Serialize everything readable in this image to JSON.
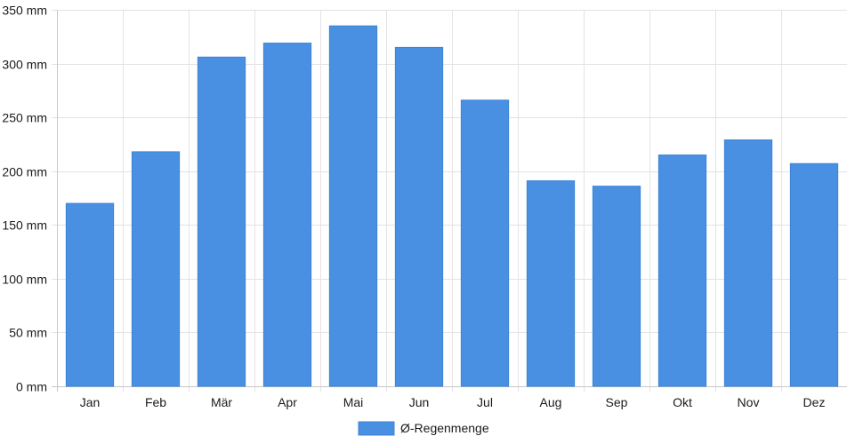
{
  "chart_data": {
    "type": "bar",
    "title": "",
    "xlabel": "",
    "ylabel": "",
    "categories": [
      "Jan",
      "Feb",
      "Mär",
      "Apr",
      "Mai",
      "Jun",
      "Jul",
      "Aug",
      "Sep",
      "Okt",
      "Nov",
      "Dez"
    ],
    "series": [
      {
        "name": "Ø-Regenmenge",
        "color": "#4a90e2",
        "values": [
          170,
          218,
          306,
          319,
          335,
          315,
          266,
          191,
          186,
          215,
          229,
          207
        ]
      }
    ],
    "ylim": [
      0,
      350
    ],
    "yticks": [
      0,
      50,
      100,
      150,
      200,
      250,
      300,
      350
    ],
    "y_unit": "mm",
    "grid": true,
    "legend_position": "bottom"
  }
}
